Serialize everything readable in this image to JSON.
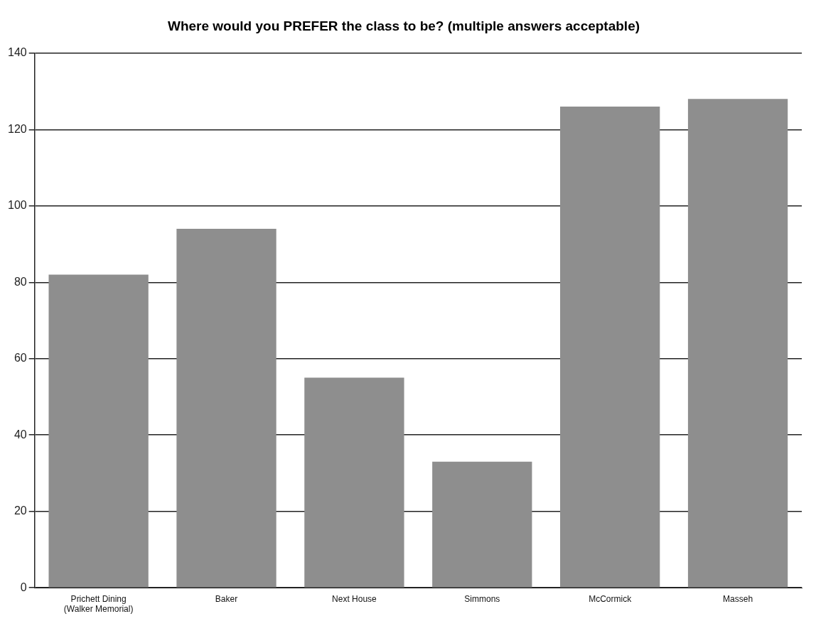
{
  "chart_data": {
    "type": "bar",
    "title": "Where would you PREFER the class to be? (multiple answers acceptable)",
    "categories": [
      "Prichett Dining\n(Walker Memorial)",
      "Baker",
      "Next House",
      "Simmons",
      "McCormick",
      "Masseh"
    ],
    "values": [
      82,
      94,
      55,
      33,
      126,
      128
    ],
    "color": "#8e8e8e",
    "ylim": [
      0,
      140
    ],
    "yticks": [
      0,
      20,
      40,
      60,
      80,
      100,
      120,
      140
    ],
    "grid": "y",
    "legend": false
  }
}
